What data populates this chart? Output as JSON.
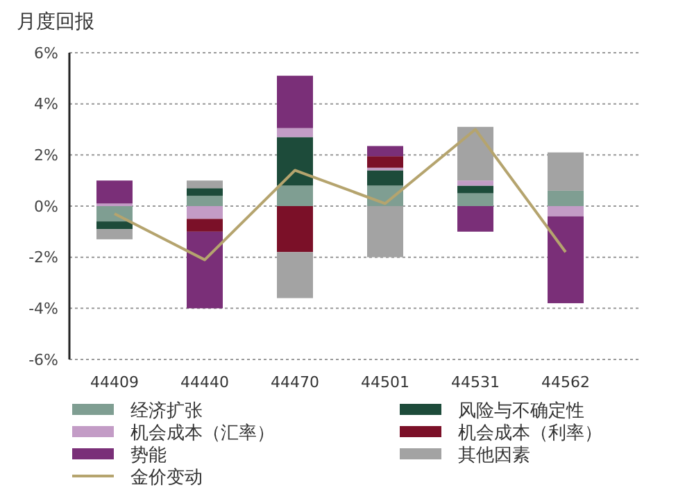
{
  "chart_data": {
    "type": "bar",
    "stacked": true,
    "title": "月度回报",
    "categories": [
      "44409",
      "44440",
      "44470",
      "44501",
      "44531",
      "44562"
    ],
    "series": [
      {
        "name": "经济扩张",
        "color": "#7f9e92",
        "values": [
          -0.6,
          0.4,
          0.8,
          0.8,
          0.5,
          0.6
        ]
      },
      {
        "name": "风险与不确定性",
        "color": "#1d4b3a",
        "values": [
          -0.3,
          0.3,
          1.9,
          0.6,
          0.3,
          null
        ]
      },
      {
        "name": "机会成本（汇率）",
        "color": "#c39cc6",
        "values": [
          0.1,
          -0.5,
          0.35,
          0.1,
          0.2,
          -0.4
        ]
      },
      {
        "name": "机会成本（利率）",
        "color": "#7b1028",
        "values": [
          null,
          -0.5,
          -1.8,
          0.45,
          null,
          null
        ]
      },
      {
        "name": "势能",
        "color": "#7a2f78",
        "values": [
          0.9,
          -3.0,
          2.05,
          0.4,
          -1.0,
          -3.4
        ]
      },
      {
        "name": "其他因素",
        "color": "#a3a3a3",
        "values": [
          -0.4,
          0.3,
          -1.8,
          -2.0,
          2.1,
          1.5
        ]
      },
      {
        "name": "金价变动",
        "type": "line",
        "color": "#b5a46e",
        "values": [
          -0.3,
          -2.1,
          1.4,
          0.1,
          3.0,
          -1.8
        ]
      }
    ],
    "ylim": [
      -6,
      6
    ],
    "yticks": [
      {
        "value": -6,
        "label": "-6%"
      },
      {
        "value": -4,
        "label": "-4%"
      },
      {
        "value": -2,
        "label": "-2%"
      },
      {
        "value": 0,
        "label": "0%"
      },
      {
        "value": 2,
        "label": "2%"
      },
      {
        "value": 4,
        "label": "4%"
      },
      {
        "value": 6,
        "label": "6%"
      }
    ],
    "grid": "y",
    "legend": "bottom",
    "marker": "none"
  }
}
